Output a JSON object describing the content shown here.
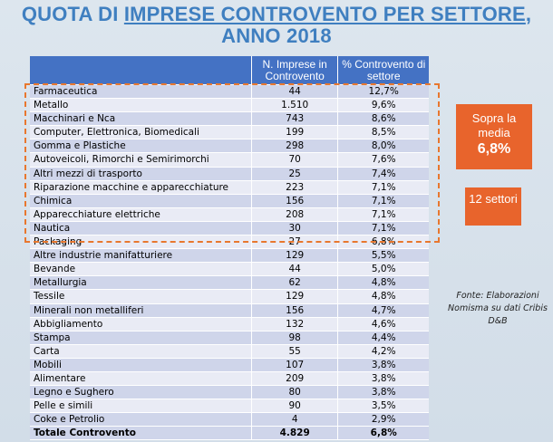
{
  "title": {
    "line1_prefix": "QUOTA DI ",
    "line1_underlined": "IMPRESE CONTROVENTO PER SETTORE",
    "line1_suffix": ",",
    "line2": "ANNO 2018"
  },
  "table": {
    "headers": {
      "sector": "",
      "count": "N. Imprese in Controvento",
      "share": "% Controvento di settore"
    },
    "rows": [
      {
        "sector": "Farmaceutica",
        "count": "44",
        "share": "12,7%"
      },
      {
        "sector": "Metallo",
        "count": "1.510",
        "share": "9,6%"
      },
      {
        "sector": "Macchinari e Nca",
        "count": "743",
        "share": "8,6%"
      },
      {
        "sector": "Computer, Elettronica, Biomedicali",
        "count": "199",
        "share": "8,5%"
      },
      {
        "sector": "Gomma e Plastiche",
        "count": "298",
        "share": "8,0%"
      },
      {
        "sector": "Autoveicoli, Rimorchi e Semirimorchi",
        "count": "70",
        "share": "7,6%"
      },
      {
        "sector": "Altri mezzi di trasporto",
        "count": "25",
        "share": "7,4%"
      },
      {
        "sector": "Riparazione macchine e apparecchiature",
        "count": "223",
        "share": "7,1%"
      },
      {
        "sector": "Chimica",
        "count": "156",
        "share": "7,1%"
      },
      {
        "sector": "Apparecchiature elettriche",
        "count": "208",
        "share": "7,1%"
      },
      {
        "sector": "Nautica",
        "count": "30",
        "share": "7,1%"
      },
      {
        "sector": "Packaging",
        "count": "27",
        "share": "6,8%"
      },
      {
        "sector": "Altre industrie manifatturiere",
        "count": "129",
        "share": "5,5%"
      },
      {
        "sector": "Bevande",
        "count": "44",
        "share": "5,0%"
      },
      {
        "sector": "Metallurgia",
        "count": "62",
        "share": "4,8%"
      },
      {
        "sector": "Tessile",
        "count": "129",
        "share": "4,8%"
      },
      {
        "sector": "Minerali non metalliferi",
        "count": "156",
        "share": "4,7%"
      },
      {
        "sector": "Abbigliamento",
        "count": "132",
        "share": "4,6%"
      },
      {
        "sector": "Stampa",
        "count": "98",
        "share": "4,4%"
      },
      {
        "sector": "Carta",
        "count": "55",
        "share": "4,2%"
      },
      {
        "sector": "Mobili",
        "count": "107",
        "share": "3,8%"
      },
      {
        "sector": "Alimentare",
        "count": "209",
        "share": "3,8%"
      },
      {
        "sector": "Legno e Sughero",
        "count": "80",
        "share": "3,8%"
      },
      {
        "sector": "Pelle e simili",
        "count": "90",
        "share": "3,5%"
      },
      {
        "sector": "Coke e Petrolio",
        "count": "4",
        "share": "2,9%"
      }
    ],
    "total": {
      "sector": "Totale Controvento",
      "count": "4.829",
      "share": "6,8%"
    }
  },
  "badges": {
    "above_average": {
      "line1": "Sopra la media",
      "value": "6,8%"
    },
    "sectors": {
      "text": "12 settori"
    }
  },
  "source": "Fonte: Elaborazioni Nomisma su dati Cribis D&B",
  "colors": {
    "title": "#3f7fc0",
    "header": "#4472c4",
    "row_odd": "#cfd5ea",
    "row_even": "#e9ebf5",
    "accent": "#e8642c",
    "dash": "#e8772e"
  }
}
